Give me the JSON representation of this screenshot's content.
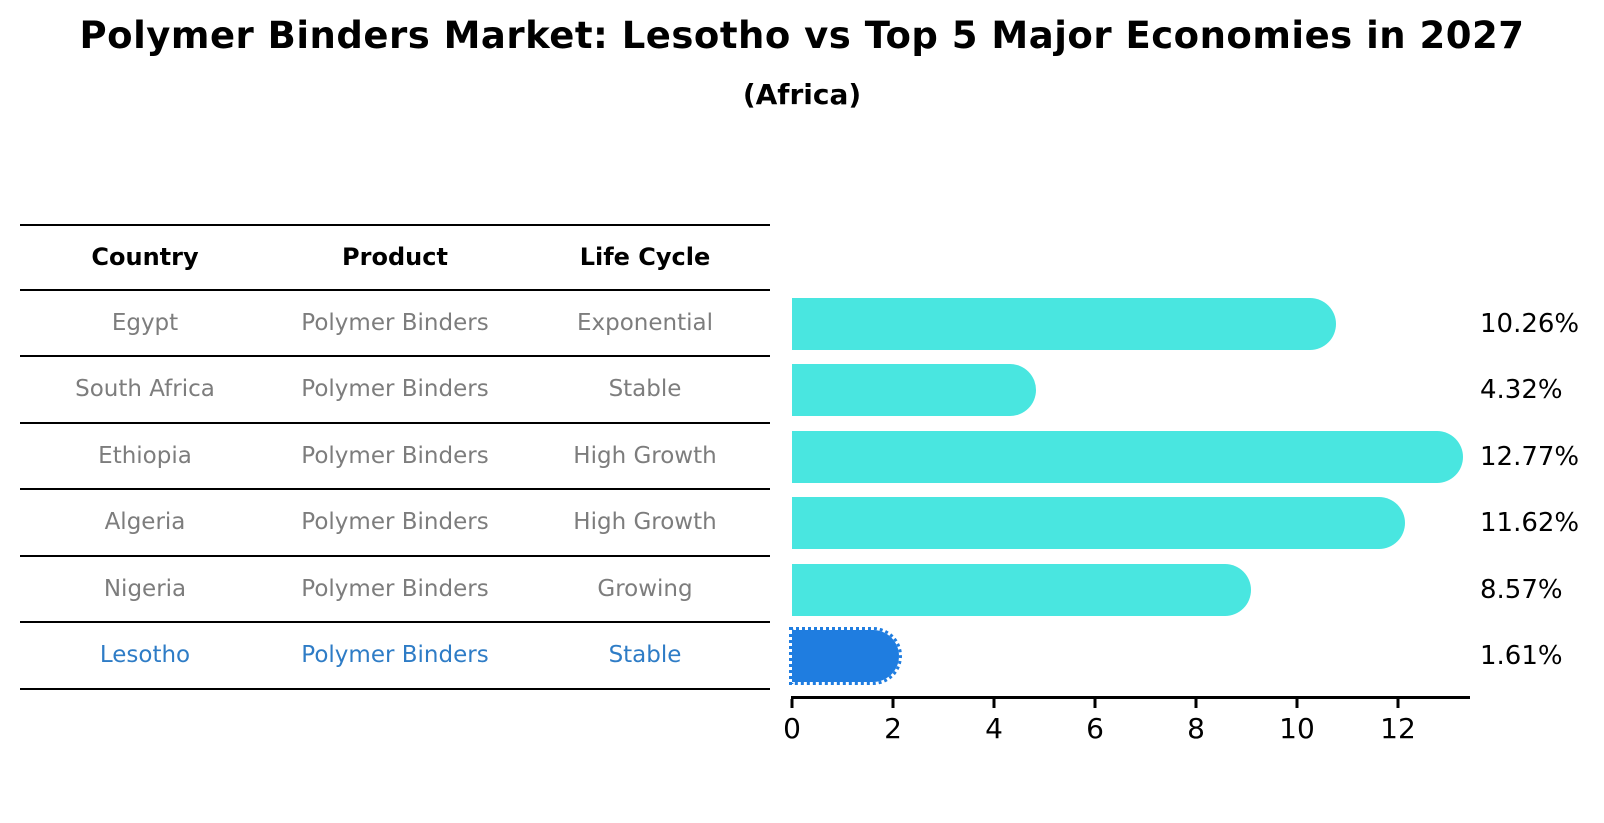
{
  "title": "Polymer Binders Market: Lesotho vs Top 5 Major Economies in 2027",
  "subtitle": "(Africa)",
  "table": {
    "headers": [
      "Country",
      "Product",
      "Life Cycle"
    ],
    "rows": [
      {
        "country": "Egypt",
        "product": "Polymer Binders",
        "life_cycle": "Exponential",
        "highlight": false
      },
      {
        "country": "South Africa",
        "product": "Polymer Binders",
        "life_cycle": "Stable",
        "highlight": false
      },
      {
        "country": "Ethiopia",
        "product": "Polymer Binders",
        "life_cycle": "High Growth",
        "highlight": false
      },
      {
        "country": "Algeria",
        "product": "Polymer Binders",
        "life_cycle": "High Growth",
        "highlight": false
      },
      {
        "country": "Nigeria",
        "product": "Polymer Binders",
        "life_cycle": "Growing",
        "highlight": false
      },
      {
        "country": "Lesotho",
        "product": "Polymer Binders",
        "life_cycle": "Stable",
        "highlight": true
      }
    ]
  },
  "chart_data": {
    "type": "bar",
    "orientation": "horizontal",
    "title": "Polymer Binders Market: Lesotho vs Top 5 Major Economies in 2027",
    "subtitle": "(Africa)",
    "categories": [
      "Egypt",
      "South Africa",
      "Ethiopia",
      "Algeria",
      "Nigeria",
      "Lesotho"
    ],
    "values": [
      10.26,
      4.32,
      12.77,
      11.62,
      8.57,
      1.61
    ],
    "value_labels": [
      "10.26%",
      "4.32%",
      "12.77%",
      "11.62%",
      "8.57%",
      "1.61%"
    ],
    "xlabel": "",
    "ylabel": "",
    "xlim": [
      0,
      13.4
    ],
    "x_ticks": [
      0,
      2,
      4,
      6,
      8,
      10,
      12
    ],
    "x_tick_labels": [
      "0",
      "2",
      "4",
      "6",
      "8",
      "10",
      "12"
    ],
    "grid": false,
    "legend": false,
    "highlight_index": 5
  },
  "colors": {
    "bar_default": "#49e6e0",
    "bar_highlight": "#1f7de0",
    "highlight_text": "#2e7cc6",
    "table_text": "#7d7d7d",
    "header_text": "#000000",
    "axis": "#000000"
  }
}
